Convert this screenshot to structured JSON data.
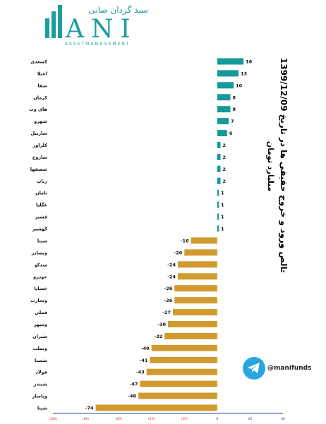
{
  "logo": {
    "brand_arabic": "سبد گردان صانی",
    "brand_latin": "ANI",
    "tagline": "ASSETMANAGEMENT"
  },
  "title": {
    "main": "خالص ورود و خروج حقیقی ها در تاریخ 1399/12/09",
    "unit": "میلیارد تومان"
  },
  "telegram": {
    "handle": "@manifunds",
    "icon": "telegram-icon"
  },
  "colors": {
    "positive": "#16999a",
    "negative": "#d19a2f",
    "teal_brand": "#1b9ea0",
    "axis": "#1f3a8c"
  },
  "chart_data": {
    "type": "bar",
    "orientation": "horizontal",
    "categories": [
      "کسعدی",
      "اعتلا",
      "شفا",
      "کرمان",
      "های وب",
      "شهرو",
      "ساربیل",
      "کلراور",
      "ساروج",
      "شصفها",
      "رتاپ",
      "ثامان",
      "غگلپا",
      "قشیر",
      "کهشیر",
      "سیتا",
      "وبصادر",
      "میدکو",
      "خودرو",
      "خساپا",
      "وتجارت",
      "فملی",
      "ومپهر",
      "شتران",
      "وبملت",
      "شستا",
      "فولاد",
      "شبندر",
      "وپاسار",
      "شپنا"
    ],
    "values": [
      16,
      13,
      10,
      8,
      8,
      7,
      6,
      2,
      2,
      2,
      2,
      1,
      1,
      1,
      1,
      -16,
      -20,
      -24,
      -24,
      -26,
      -26,
      -27,
      -30,
      -32,
      -40,
      -41,
      -43,
      -47,
      -48,
      -74
    ],
    "value_labels": [
      "16",
      "13",
      "10",
      "8",
      "8",
      "7",
      "6",
      "2",
      "2",
      "2",
      "2",
      "1",
      "1",
      "1",
      "1",
      "-16",
      "-20",
      "-24",
      "-24",
      "-26",
      "-26",
      "-27",
      "-30",
      "-32",
      "-40",
      "-41",
      "-43",
      "-47",
      "-48",
      "-74"
    ],
    "xlim": [
      -100,
      40
    ],
    "x_ticks": [
      -100,
      -80,
      -60,
      -40,
      -20,
      0,
      20,
      40
    ],
    "x_tick_labels": [
      "(100)",
      "(80)",
      "(60)",
      "(40)",
      "(20)",
      "0",
      "20",
      "40"
    ],
    "grid": false,
    "legend": "none"
  }
}
